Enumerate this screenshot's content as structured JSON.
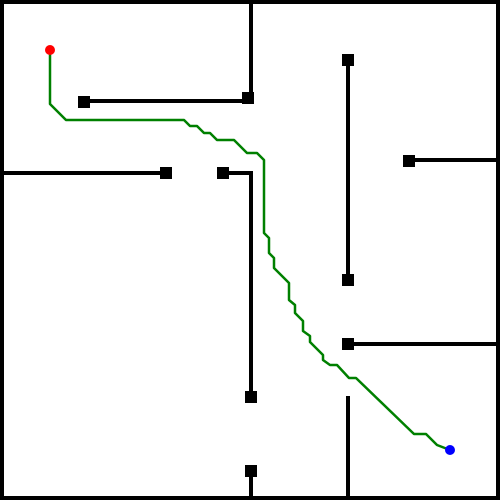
{
  "maze": {
    "wall_color": "#000000",
    "path_color": "#008000",
    "start_color": "#ff0000",
    "goal_color": "#0000ff",
    "background_color": "#ffffff"
  }
}
